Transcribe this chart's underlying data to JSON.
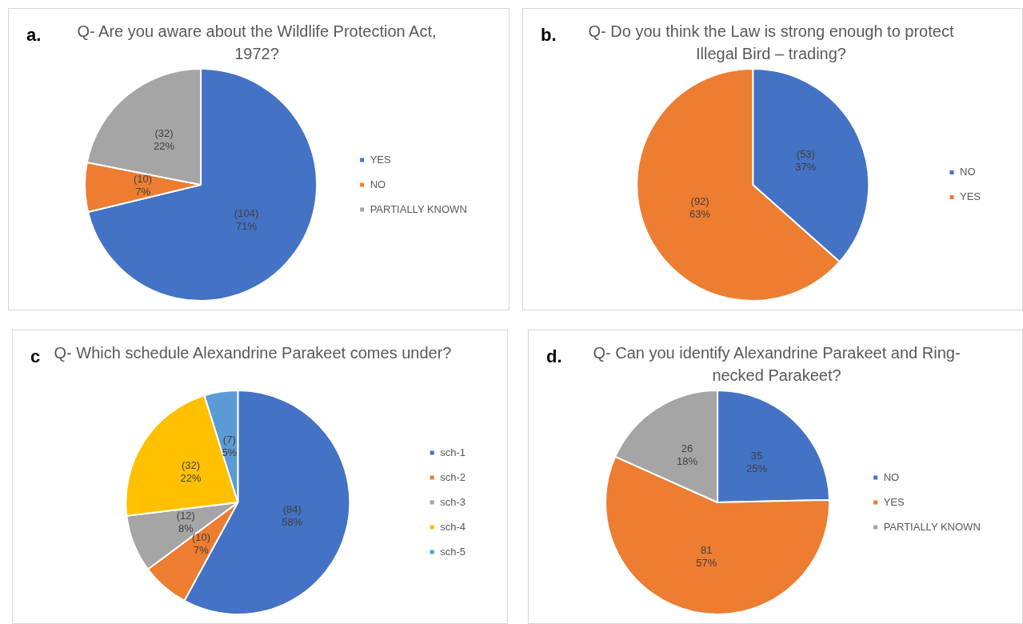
{
  "chart_data": [
    {
      "type": "pie",
      "title": "Q- Are you aware about the Wildlife Protection Act, 1972?",
      "annotations": [
        "a."
      ],
      "categories": [
        "YES",
        "NO",
        "PARTIALLY KNOWN"
      ],
      "values": [
        104,
        10,
        32
      ],
      "colors": [
        "#4472c4",
        "#ed7d31",
        "#a5a5a5"
      ],
      "value_labels": [
        "(104)\n71%",
        "(10)\n7%",
        "(32)\n22%"
      ],
      "legend": "right"
    },
    {
      "type": "pie",
      "title": "Q- Do you think the Law is strong enough to protect Illegal Bird – trading?",
      "annotations": [
        "b."
      ],
      "categories": [
        "NO",
        "YES"
      ],
      "values": [
        53,
        92
      ],
      "colors": [
        "#4472c4",
        "#ed7d31"
      ],
      "value_labels": [
        "(53)\n37%",
        "(92)\n63%"
      ],
      "legend": "right"
    },
    {
      "type": "pie",
      "title": "Q-  Which schedule Alexandrine Parakeet comes under?",
      "annotations": [
        "c"
      ],
      "categories": [
        "sch-1",
        "sch-2",
        "sch-3",
        "sch-4",
        "sch-5"
      ],
      "values": [
        84,
        10,
        12,
        32,
        7
      ],
      "colors": [
        "#4472c4",
        "#ed7d31",
        "#a5a5a5",
        "#ffc000",
        "#5b9bd5"
      ],
      "value_labels": [
        "(84)\n58%",
        "(10)\n7%",
        "(12)\n8%",
        "(32)\n22%",
        "(7)\n5%"
      ],
      "legend": "right"
    },
    {
      "type": "pie",
      "title": "Q- Can you identify Alexandrine Parakeet and Ring-necked Parakeet?",
      "annotations": [
        "d."
      ],
      "categories": [
        "NO",
        "YES",
        "PARTIALLY KNOWN"
      ],
      "values": [
        35,
        81,
        26
      ],
      "colors": [
        "#4472c4",
        "#ed7d31",
        "#a5a5a5"
      ],
      "value_labels": [
        "35\n25%",
        "81\n57%",
        "26\n18%"
      ],
      "legend": "right"
    }
  ]
}
